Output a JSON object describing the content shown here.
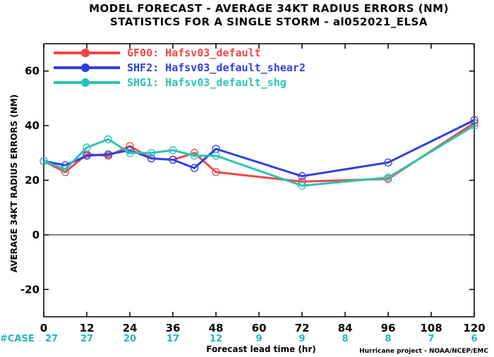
{
  "title_lines": [
    "MODEL FORECAST - AVERAGE 34KT RADIUS ERRORS (NM)",
    "STATISTICS FOR A SINGLE STORM - al052021_ELSA"
  ],
  "credit": "Hurricane project - NOAA/NCEP/EMC",
  "case_label": "#CASE",
  "case_color": "#1fb8b8",
  "case_counts": [
    "27",
    "27",
    "20",
    "17",
    "12",
    "9",
    "9",
    "8",
    "8",
    "7",
    "6"
  ],
  "chart_data": {
    "type": "line",
    "xlabel": "Forecast lead time (hr)",
    "ylabel": "AVERAGE 34KT RADIUS ERRORS (NM)",
    "xlim": [
      0,
      120
    ],
    "ylim": [
      -30,
      70
    ],
    "xticks": [
      0,
      12,
      24,
      36,
      48,
      60,
      72,
      84,
      96,
      108,
      120
    ],
    "xtick_labels": [
      "0",
      "12",
      "24",
      "36",
      "48",
      "60",
      "72",
      "84",
      "96",
      "108",
      "120"
    ],
    "yticks": [
      -20,
      0,
      20,
      40,
      60
    ],
    "ytick_labels": [
      "-20",
      "0",
      "20",
      "40",
      "60"
    ],
    "zero_line": true,
    "grid": false,
    "legend_position": "top-left",
    "series": [
      {
        "name": "GF00: Hafsv03_default",
        "color": "#f04848",
        "x": [
          0,
          6,
          12,
          18,
          24,
          30,
          36,
          42,
          48,
          72,
          96,
          120
        ],
        "y": [
          27,
          23,
          29.5,
          29,
          32.5,
          28,
          27.5,
          30,
          23,
          19.5,
          20.5,
          41
        ]
      },
      {
        "name": "SHF2: Hafsv03_default_shear2",
        "color": "#3040e0",
        "x": [
          0,
          6,
          12,
          18,
          24,
          30,
          36,
          42,
          48,
          72,
          96,
          120
        ],
        "y": [
          27,
          25.5,
          29,
          29.5,
          31,
          28,
          27.5,
          24.5,
          31.5,
          21.5,
          26.5,
          42
        ]
      },
      {
        "name": "SHG1: Hafsv03_default_shg",
        "color": "#2ac4b4",
        "x": [
          0,
          6,
          12,
          18,
          24,
          30,
          36,
          42,
          48,
          72,
          96,
          120
        ],
        "y": [
          27,
          24,
          32,
          35,
          30,
          30,
          31,
          29,
          29,
          18,
          21,
          40
        ]
      }
    ]
  }
}
